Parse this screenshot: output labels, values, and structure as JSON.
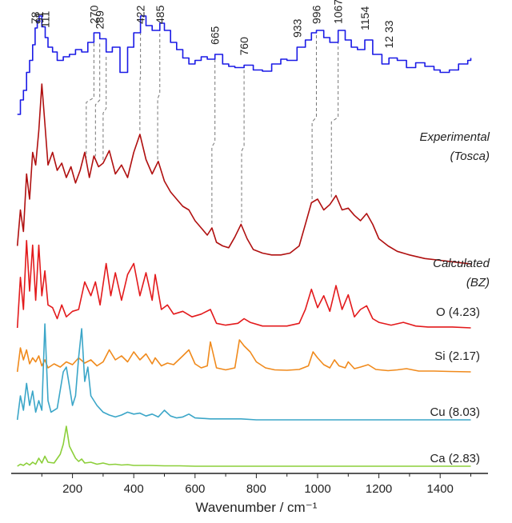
{
  "chart_data": {
    "type": "line",
    "title": "",
    "xlabel": "Wavenumber  / cm⁻¹",
    "ylabel": "",
    "xlim": [
      0,
      1530
    ],
    "x_ticks": [
      "200",
      "400",
      "600",
      "800",
      "1000",
      "1200",
      "1400"
    ],
    "x_tick_values": [
      200,
      400,
      600,
      800,
      1000,
      1200,
      1400
    ],
    "peak_labels": [
      "78",
      "91",
      "111",
      "270",
      "289",
      "422",
      "485",
      "665",
      "760",
      "933",
      "996",
      "1067",
      "1154",
      "12 33"
    ],
    "peak_positions": [
      78,
      91,
      111,
      270,
      289,
      422,
      485,
      665,
      760,
      933,
      996,
      1067,
      1154,
      1233
    ],
    "series": [
      {
        "name": "Experimental (Tosca)",
        "label_lines": [
          "Experimental",
          "(Tosca)"
        ],
        "color": "#1a1ae6",
        "x": [
          20,
          30,
          40,
          50,
          60,
          70,
          78,
          85,
          91,
          100,
          111,
          120,
          135,
          150,
          170,
          190,
          210,
          230,
          250,
          270,
          289,
          310,
          330,
          355,
          380,
          400,
          422,
          440,
          460,
          485,
          500,
          520,
          540,
          560,
          580,
          600,
          620,
          640,
          665,
          690,
          710,
          730,
          760,
          790,
          820,
          850,
          880,
          900,
          933,
          960,
          980,
          996,
          1020,
          1040,
          1067,
          1090,
          1110,
          1130,
          1154,
          1180,
          1210,
          1233,
          1260,
          1290,
          1320,
          1350,
          1380,
          1400,
          1430,
          1460,
          1490,
          1500
        ],
        "y": [
          0.1,
          0.22,
          0.3,
          0.45,
          0.55,
          0.68,
          0.82,
          0.88,
          0.92,
          0.83,
          0.74,
          0.66,
          0.62,
          0.55,
          0.58,
          0.6,
          0.64,
          0.62,
          0.7,
          0.78,
          0.73,
          0.62,
          0.66,
          0.45,
          0.66,
          0.78,
          0.92,
          0.84,
          0.8,
          0.86,
          0.8,
          0.7,
          0.64,
          0.57,
          0.52,
          0.55,
          0.58,
          0.56,
          0.6,
          0.52,
          0.5,
          0.49,
          0.51,
          0.47,
          0.46,
          0.52,
          0.56,
          0.55,
          0.66,
          0.72,
          0.78,
          0.8,
          0.74,
          0.7,
          0.8,
          0.72,
          0.66,
          0.64,
          0.72,
          0.6,
          0.52,
          0.57,
          0.55,
          0.49,
          0.53,
          0.5,
          0.47,
          0.45,
          0.47,
          0.52,
          0.55,
          0.57
        ]
      },
      {
        "name": "Calculated (BZ)",
        "label_lines": [
          "Calculated",
          "(BZ)"
        ],
        "color": "#b01010",
        "x": [
          20,
          30,
          40,
          50,
          60,
          70,
          80,
          90,
          100,
          110,
          120,
          135,
          150,
          165,
          180,
          195,
          210,
          225,
          240,
          255,
          270,
          285,
          300,
          320,
          340,
          360,
          380,
          400,
          420,
          440,
          460,
          480,
          500,
          520,
          540,
          560,
          580,
          600,
          620,
          640,
          655,
          670,
          690,
          710,
          730,
          750,
          770,
          790,
          820,
          850,
          880,
          910,
          940,
          960,
          980,
          1000,
          1020,
          1040,
          1060,
          1080,
          1100,
          1120,
          1140,
          1160,
          1180,
          1200,
          1230,
          1260,
          1300,
          1350,
          1400,
          1450,
          1500
        ],
        "y": [
          0.1,
          0.3,
          0.18,
          0.5,
          0.36,
          0.62,
          0.55,
          0.74,
          1.0,
          0.78,
          0.55,
          0.62,
          0.52,
          0.56,
          0.48,
          0.54,
          0.45,
          0.52,
          0.62,
          0.48,
          0.6,
          0.54,
          0.56,
          0.63,
          0.5,
          0.55,
          0.48,
          0.62,
          0.72,
          0.58,
          0.5,
          0.57,
          0.46,
          0.4,
          0.36,
          0.32,
          0.3,
          0.24,
          0.2,
          0.16,
          0.2,
          0.12,
          0.1,
          0.09,
          0.15,
          0.22,
          0.14,
          0.08,
          0.06,
          0.05,
          0.05,
          0.06,
          0.1,
          0.22,
          0.34,
          0.36,
          0.3,
          0.33,
          0.38,
          0.3,
          0.31,
          0.27,
          0.24,
          0.28,
          0.22,
          0.14,
          0.1,
          0.07,
          0.05,
          0.03,
          0.02,
          0.01,
          0.0
        ]
      },
      {
        "name": "O (4.23)",
        "color": "#e31a1c",
        "x": [
          20,
          30,
          40,
          50,
          60,
          70,
          80,
          90,
          100,
          110,
          120,
          135,
          150,
          165,
          180,
          200,
          220,
          240,
          260,
          275,
          290,
          310,
          325,
          340,
          360,
          380,
          400,
          420,
          440,
          460,
          470,
          490,
          510,
          530,
          560,
          590,
          620,
          650,
          670,
          700,
          740,
          760,
          780,
          820,
          860,
          900,
          940,
          960,
          980,
          1000,
          1020,
          1040,
          1060,
          1080,
          1100,
          1120,
          1140,
          1160,
          1180,
          1200,
          1240,
          1280,
          1300,
          1320,
          1360,
          1400,
          1440,
          1500
        ],
        "y": [
          0.0,
          0.55,
          0.2,
          0.95,
          0.4,
          0.9,
          0.3,
          0.9,
          0.35,
          0.62,
          0.25,
          0.22,
          0.1,
          0.25,
          0.12,
          0.18,
          0.2,
          0.5,
          0.35,
          0.5,
          0.25,
          0.7,
          0.35,
          0.6,
          0.3,
          0.58,
          0.7,
          0.35,
          0.6,
          0.3,
          0.58,
          0.2,
          0.25,
          0.15,
          0.18,
          0.12,
          0.15,
          0.2,
          0.05,
          0.03,
          0.05,
          0.1,
          0.06,
          0.02,
          0.02,
          0.02,
          0.05,
          0.2,
          0.42,
          0.22,
          0.35,
          0.18,
          0.46,
          0.2,
          0.36,
          0.12,
          0.2,
          0.24,
          0.1,
          0.06,
          0.03,
          0.06,
          0.04,
          0.02,
          0.01,
          0.01,
          0.01,
          0.0
        ]
      },
      {
        "name": "Si (2.17)",
        "color": "#f08a1c",
        "x": [
          20,
          30,
          40,
          50,
          60,
          70,
          80,
          90,
          100,
          110,
          120,
          140,
          160,
          180,
          200,
          220,
          240,
          260,
          280,
          300,
          320,
          340,
          360,
          380,
          400,
          420,
          440,
          460,
          470,
          490,
          510,
          530,
          560,
          580,
          600,
          620,
          640,
          650,
          670,
          700,
          730,
          745,
          760,
          780,
          800,
          830,
          860,
          900,
          940,
          970,
          985,
          1000,
          1020,
          1040,
          1055,
          1070,
          1090,
          1100,
          1120,
          1140,
          1165,
          1190,
          1230,
          1260,
          1290,
          1330,
          1380,
          1430,
          1500
        ],
        "y": [
          0.0,
          0.6,
          0.3,
          0.55,
          0.2,
          0.35,
          0.25,
          0.4,
          0.15,
          0.3,
          0.1,
          0.2,
          0.12,
          0.25,
          0.18,
          0.35,
          0.22,
          0.3,
          0.15,
          0.25,
          0.55,
          0.3,
          0.4,
          0.25,
          0.5,
          0.3,
          0.45,
          0.2,
          0.35,
          0.15,
          0.22,
          0.18,
          0.4,
          0.55,
          0.2,
          0.1,
          0.15,
          0.75,
          0.1,
          0.05,
          0.1,
          0.8,
          0.65,
          0.5,
          0.25,
          0.1,
          0.05,
          0.04,
          0.06,
          0.15,
          0.5,
          0.35,
          0.18,
          0.1,
          0.3,
          0.15,
          0.1,
          0.25,
          0.08,
          0.12,
          0.18,
          0.06,
          0.03,
          0.05,
          0.08,
          0.02,
          0.02,
          0.01,
          0.0
        ]
      },
      {
        "name": "Cu (8.03)",
        "color": "#3ba6c8",
        "x": [
          20,
          30,
          40,
          50,
          60,
          70,
          80,
          90,
          100,
          110,
          120,
          130,
          150,
          170,
          180,
          190,
          200,
          210,
          220,
          230,
          240,
          250,
          260,
          280,
          300,
          320,
          340,
          360,
          380,
          400,
          420,
          440,
          460,
          480,
          500,
          520,
          540,
          560,
          580,
          600,
          650,
          700,
          750,
          800,
          900,
          1000,
          1100,
          1200,
          1300,
          1400,
          1500
        ],
        "y": [
          0.0,
          0.25,
          0.1,
          0.38,
          0.15,
          0.3,
          0.08,
          0.2,
          0.1,
          1.0,
          0.2,
          0.08,
          0.12,
          0.5,
          0.55,
          0.35,
          0.15,
          0.25,
          0.65,
          0.95,
          0.4,
          0.55,
          0.25,
          0.15,
          0.08,
          0.05,
          0.03,
          0.05,
          0.08,
          0.06,
          0.07,
          0.04,
          0.06,
          0.03,
          0.1,
          0.04,
          0.02,
          0.03,
          0.06,
          0.02,
          0.01,
          0.01,
          0.01,
          0.0,
          0.0,
          0.0,
          0.0,
          0.0,
          0.0,
          0.0,
          0.0
        ]
      },
      {
        "name": "Ca (2.83)",
        "color": "#8ccf3a",
        "x": [
          20,
          30,
          40,
          50,
          60,
          70,
          80,
          90,
          100,
          110,
          120,
          140,
          160,
          170,
          180,
          190,
          200,
          210,
          220,
          230,
          240,
          260,
          280,
          300,
          320,
          340,
          360,
          380,
          400,
          450,
          500,
          550,
          600,
          700,
          800,
          900,
          1000,
          1100,
          1200,
          1300,
          1400,
          1500
        ],
        "y": [
          0.0,
          0.05,
          0.02,
          0.08,
          0.03,
          0.1,
          0.05,
          0.2,
          0.08,
          0.25,
          0.1,
          0.08,
          0.3,
          0.55,
          1.0,
          0.5,
          0.35,
          0.2,
          0.12,
          0.18,
          0.08,
          0.1,
          0.05,
          0.08,
          0.04,
          0.05,
          0.03,
          0.04,
          0.02,
          0.02,
          0.01,
          0.01,
          0.0,
          0.0,
          0.0,
          0.0,
          0.0,
          0.0,
          0.0,
          0.0,
          0.0,
          0.0
        ]
      }
    ],
    "connectors": [
      {
        "from": 270,
        "to": 245
      },
      {
        "from": 289,
        "to": 275
      },
      {
        "from": 310,
        "to": 300
      },
      {
        "from": 422,
        "to": 420
      },
      {
        "from": 485,
        "to": 478
      },
      {
        "from": 665,
        "to": 655
      },
      {
        "from": 760,
        "to": 752
      },
      {
        "from": 996,
        "to": 982
      },
      {
        "from": 1067,
        "to": 1045
      }
    ]
  }
}
